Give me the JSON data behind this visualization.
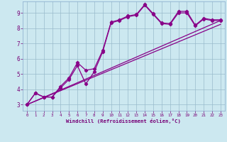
{
  "xlabel": "Windchill (Refroidissement éolien,°C)",
  "background_color": "#cce8f0",
  "grid_color": "#99bbcc",
  "line_color": "#880088",
  "xlim": [
    -0.5,
    23.5
  ],
  "ylim": [
    2.6,
    9.75
  ],
  "xticks": [
    0,
    1,
    2,
    3,
    4,
    5,
    6,
    7,
    8,
    9,
    10,
    11,
    12,
    13,
    14,
    15,
    16,
    17,
    18,
    19,
    20,
    21,
    22,
    23
  ],
  "yticks": [
    3,
    4,
    5,
    6,
    7,
    8,
    9
  ],
  "line1_x": [
    0,
    1,
    2,
    3,
    4,
    5,
    6,
    7,
    8,
    9,
    10,
    11,
    12,
    13,
    14,
    15,
    16,
    17,
    18,
    19,
    20,
    21,
    22,
    23
  ],
  "line1_y": [
    3.0,
    3.75,
    3.5,
    3.5,
    4.1,
    4.65,
    5.55,
    4.35,
    5.15,
    6.45,
    8.35,
    8.5,
    8.75,
    8.85,
    9.5,
    8.9,
    8.3,
    8.25,
    9.0,
    9.0,
    8.15,
    8.6,
    8.5,
    8.5
  ],
  "line2_x": [
    0,
    1,
    2,
    3,
    4,
    5,
    6,
    7,
    8,
    9,
    10,
    11,
    12,
    13,
    14,
    15,
    16,
    17,
    18,
    19,
    20,
    21,
    22,
    23
  ],
  "line2_y": [
    3.0,
    3.75,
    3.5,
    3.5,
    4.2,
    4.75,
    5.75,
    5.25,
    5.35,
    6.55,
    8.4,
    8.55,
    8.8,
    8.9,
    9.55,
    8.95,
    8.35,
    8.3,
    9.1,
    9.1,
    8.2,
    8.65,
    8.55,
    8.55
  ],
  "trend1_x": [
    0,
    23
  ],
  "trend1_y": [
    3.0,
    8.5
  ],
  "trend2_x": [
    0,
    23
  ],
  "trend2_y": [
    3.0,
    8.25
  ]
}
